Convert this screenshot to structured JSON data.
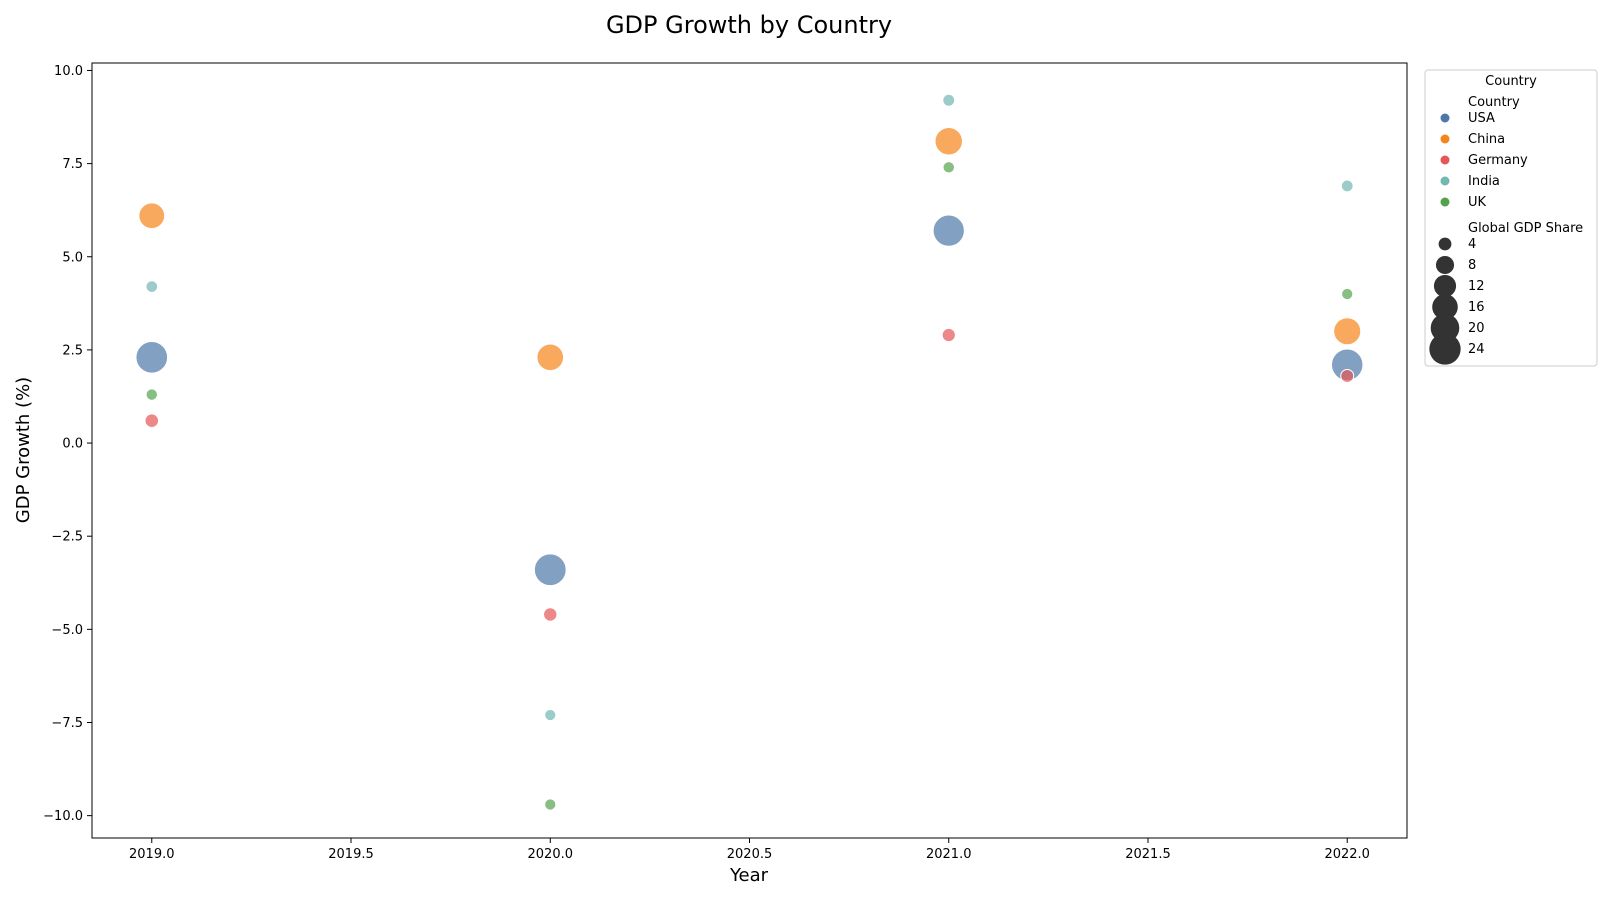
{
  "chart_data": {
    "type": "scatter",
    "title": "GDP Growth by Country",
    "xlabel": "Year",
    "ylabel": "GDP Growth (%)",
    "xlim": [
      2018.85,
      2022.15
    ],
    "ylim": [
      -10.6,
      10.2
    ],
    "xticks": [
      2019.0,
      2019.5,
      2020.0,
      2020.5,
      2021.0,
      2021.5,
      2022.0
    ],
    "yticks": [
      -10.0,
      -7.5,
      -5.0,
      -2.5,
      0.0,
      2.5,
      5.0,
      7.5,
      10.0
    ],
    "grid": false,
    "legend_position": "outside-right",
    "legend": {
      "title": "Country",
      "hue_header": "Country",
      "size_header": "Global GDP Share",
      "size_entries": [
        4,
        8,
        12,
        16,
        20,
        24
      ]
    },
    "series": [
      {
        "name": "USA",
        "color": "#4c78a8",
        "points": [
          {
            "x": 2019,
            "y": 2.3,
            "size": 24.4
          },
          {
            "x": 2020,
            "y": -3.4,
            "size": 24.7
          },
          {
            "x": 2021,
            "y": 5.7,
            "size": 23.9
          },
          {
            "x": 2022,
            "y": 2.1,
            "size": 24.2
          }
        ]
      },
      {
        "name": "China",
        "color": "#f58518",
        "points": [
          {
            "x": 2019,
            "y": 6.1,
            "size": 16.3
          },
          {
            "x": 2020,
            "y": 2.3,
            "size": 17.3
          },
          {
            "x": 2021,
            "y": 8.1,
            "size": 18.4
          },
          {
            "x": 2022,
            "y": 3.0,
            "size": 17.9
          }
        ]
      },
      {
        "name": "Germany",
        "color": "#e45756",
        "points": [
          {
            "x": 2019,
            "y": 0.6,
            "size": 4.5
          },
          {
            "x": 2020,
            "y": -4.6,
            "size": 4.4
          },
          {
            "x": 2021,
            "y": 2.9,
            "size": 4.3
          },
          {
            "x": 2022,
            "y": 1.8,
            "size": 4.1
          }
        ]
      },
      {
        "name": "India",
        "color": "#72b7b2",
        "points": [
          {
            "x": 2019,
            "y": 4.2,
            "size": 3.3
          },
          {
            "x": 2020,
            "y": -7.3,
            "size": 3.1
          },
          {
            "x": 2021,
            "y": 9.2,
            "size": 3.5
          },
          {
            "x": 2022,
            "y": 6.9,
            "size": 3.4
          }
        ]
      },
      {
        "name": "UK",
        "color": "#54a24b",
        "points": [
          {
            "x": 2019,
            "y": 1.3,
            "size": 3.2
          },
          {
            "x": 2020,
            "y": -9.7,
            "size": 3.1
          },
          {
            "x": 2021,
            "y": 7.4,
            "size": 3.2
          },
          {
            "x": 2022,
            "y": 4.0,
            "size": 3.1
          }
        ]
      }
    ]
  }
}
